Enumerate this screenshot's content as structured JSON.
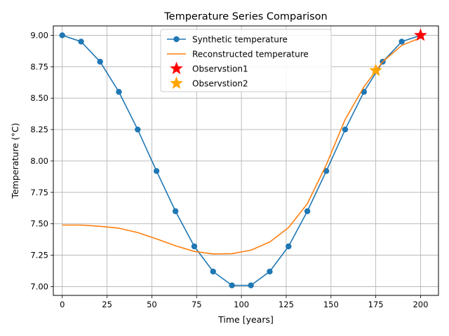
{
  "chart_data": {
    "type": "line",
    "title": "Temperature Series Comparison",
    "xlabel": "Time [years]",
    "ylabel": "Temperature (°C)",
    "xlim": [
      -5,
      210
    ],
    "ylim": [
      6.93,
      9.075
    ],
    "x_ticks": [
      0,
      25,
      50,
      75,
      100,
      125,
      150,
      175,
      200
    ],
    "y_ticks": [
      7.0,
      7.25,
      7.5,
      7.75,
      8.0,
      8.25,
      8.5,
      8.75,
      9.0
    ],
    "x_tick_labels": [
      "0",
      "25",
      "50",
      "75",
      "100",
      "125",
      "150",
      "175",
      "200"
    ],
    "y_tick_labels": [
      "7.00",
      "7.25",
      "7.50",
      "7.75",
      "8.00",
      "8.25",
      "8.50",
      "8.75",
      "9.00"
    ],
    "grid": true,
    "legend_position": "top-center",
    "series": [
      {
        "name": "Synthetic temperature",
        "style": "line-marker",
        "color": "#1f77b4",
        "x": [
          0,
          10.5,
          21.1,
          31.6,
          42.1,
          52.6,
          63.2,
          73.7,
          84.2,
          94.7,
          105.3,
          115.8,
          126.3,
          136.8,
          147.4,
          157.9,
          168.4,
          178.9,
          189.5,
          200
        ],
        "y": [
          9.0,
          8.95,
          8.79,
          8.55,
          8.25,
          7.92,
          7.6,
          7.32,
          7.12,
          7.01,
          7.01,
          7.12,
          7.32,
          7.6,
          7.92,
          8.25,
          8.55,
          8.79,
          8.95,
          9.0
        ]
      },
      {
        "name": "Reconstructed temperature",
        "style": "line",
        "color": "#ff7f0e",
        "x": [
          0,
          10.5,
          21.1,
          31.6,
          42.1,
          52.6,
          63.2,
          73.7,
          84.2,
          94.7,
          105.3,
          115.8,
          126.3,
          136.8,
          147.4,
          157.9,
          168.4,
          178.9,
          189.5,
          200
        ],
        "y": [
          7.49,
          7.49,
          7.48,
          7.465,
          7.43,
          7.38,
          7.325,
          7.28,
          7.26,
          7.262,
          7.29,
          7.355,
          7.47,
          7.66,
          7.97,
          8.33,
          8.59,
          8.79,
          8.92,
          8.98
        ]
      },
      {
        "name": "Observstion1",
        "style": "star",
        "color": "#ff0000",
        "x": [
          200
        ],
        "y": [
          9.0
        ]
      },
      {
        "name": "Observstion2",
        "style": "star",
        "color": "#ffa500",
        "x": [
          175
        ],
        "y": [
          8.72
        ]
      }
    ]
  }
}
